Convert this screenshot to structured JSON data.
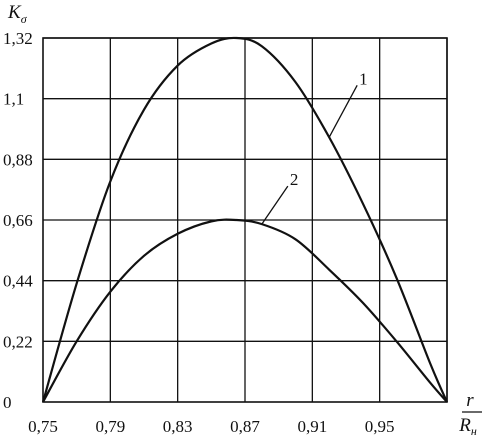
{
  "chart_data": {
    "type": "line",
    "ylabel": "K",
    "ylabel_sub": "σ",
    "xlabel_num": "r",
    "xlabel_den": "R",
    "xlabel_den_sub": "н",
    "xlim": [
      0.75,
      0.99
    ],
    "ylim": [
      0,
      1.32
    ],
    "x_ticks": [
      0.75,
      0.79,
      0.83,
      0.87,
      0.91,
      0.95
    ],
    "x_tick_labels": [
      "0,75",
      "0,79",
      "0,83",
      "0,87",
      "0,91",
      "0,95"
    ],
    "y_ticks": [
      0,
      0.22,
      0.44,
      0.66,
      0.88,
      1.1,
      1.32
    ],
    "y_tick_labels": [
      "0",
      "0,22",
      "0,44",
      "0,66",
      "0,88",
      "1,1",
      "1,32"
    ],
    "grid": true,
    "series": [
      {
        "name": "1",
        "x": [
          0.75,
          0.77,
          0.79,
          0.81,
          0.83,
          0.85,
          0.865,
          0.88,
          0.9,
          0.92,
          0.94,
          0.96,
          0.98,
          0.99
        ],
        "y": [
          0.0,
          0.43,
          0.8,
          1.06,
          1.22,
          1.3,
          1.32,
          1.29,
          1.16,
          0.96,
          0.72,
          0.45,
          0.14,
          0.0
        ]
      },
      {
        "name": "2",
        "x": [
          0.75,
          0.77,
          0.79,
          0.81,
          0.83,
          0.85,
          0.865,
          0.88,
          0.9,
          0.92,
          0.94,
          0.96,
          0.98,
          0.99
        ],
        "y": [
          0.0,
          0.22,
          0.4,
          0.53,
          0.61,
          0.655,
          0.66,
          0.645,
          0.59,
          0.48,
          0.36,
          0.22,
          0.07,
          0.0
        ]
      }
    ]
  }
}
